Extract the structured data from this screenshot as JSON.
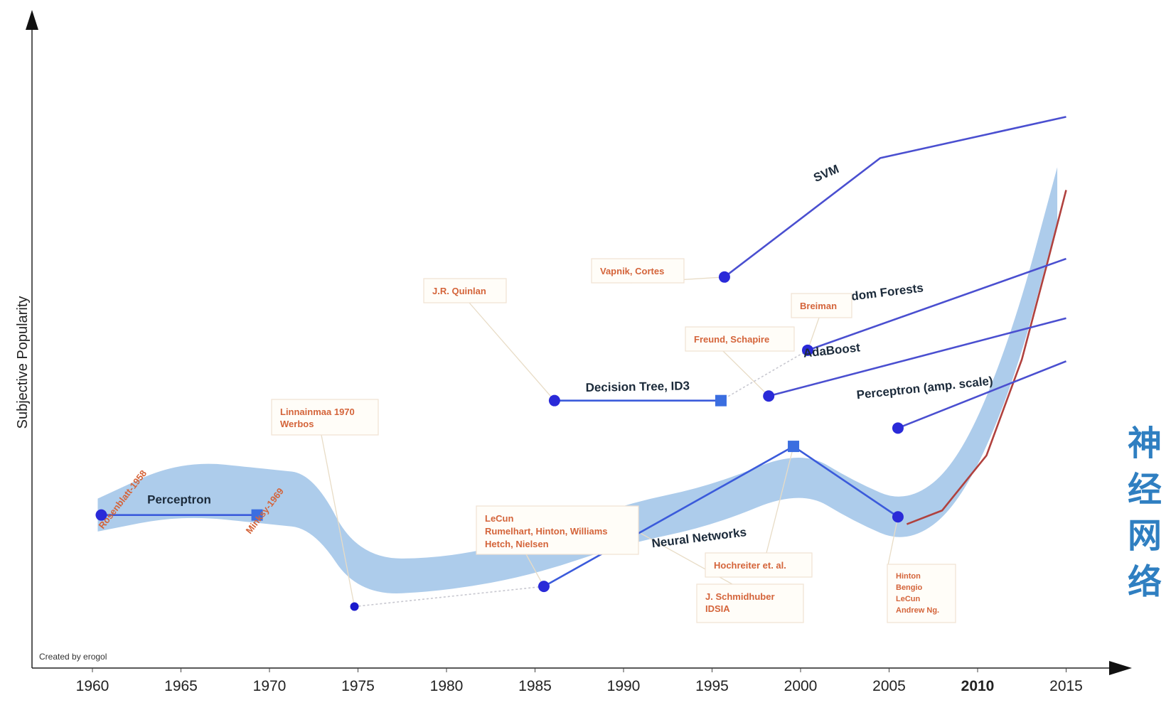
{
  "chart_data": {
    "type": "line",
    "title": "",
    "xlabel": "",
    "ylabel": "Subjective Popularity",
    "x_ticks": [
      "1960",
      "1965",
      "1970",
      "1975",
      "1980",
      "1985",
      "1990",
      "1995",
      "2000",
      "2005",
      "2010",
      "2015"
    ],
    "xlim": [
      1958,
      2018
    ],
    "ylim": [
      0,
      10
    ],
    "grid": false,
    "credit": "Created by erogol",
    "side_text": [
      "神",
      "经",
      "网",
      "络"
    ],
    "highlight_band": {
      "name": "Neural Networks trend",
      "color": "#9fc3e8",
      "points": [
        [
          1960.3,
          1.4
        ],
        [
          1965,
          1.7
        ],
        [
          1970,
          1.6
        ],
        [
          1972.5,
          1.55
        ],
        [
          1975,
          0.72
        ],
        [
          1980,
          0.75
        ],
        [
          1985,
          0.95
        ],
        [
          1990,
          1.3
        ],
        [
          1995,
          1.5
        ],
        [
          2000,
          1.9
        ],
        [
          2003,
          1.55
        ],
        [
          2006,
          1.3
        ],
        [
          2009,
          1.75
        ],
        [
          2012,
          3.1
        ],
        [
          2014.5,
          4.9
        ]
      ]
    },
    "series": [
      {
        "name": "Perceptron",
        "label_pos": "above",
        "color": "#3b5bdb",
        "points": [
          [
            1960.5,
            1.4
          ],
          [
            1969.3,
            1.4
          ]
        ],
        "markers": [
          "circle",
          "square"
        ]
      },
      {
        "name": "",
        "color": "#c8c8d0",
        "dashed": true,
        "points": [
          [
            1974.8,
            0.4
          ],
          [
            1985.5,
            0.62
          ]
        ],
        "markers": [
          "circle",
          "none"
        ]
      },
      {
        "name": "Neural Networks",
        "color": "#3b5bdb",
        "points": [
          [
            1985.5,
            0.62
          ],
          [
            1999.6,
            2.15
          ],
          [
            2005.5,
            1.38
          ]
        ],
        "markers": [
          "circle",
          "square",
          "circle"
        ]
      },
      {
        "name": "",
        "color": "#b0413e",
        "points": [
          [
            2006,
            1.3
          ],
          [
            2008,
            1.45
          ],
          [
            2010.5,
            2.05
          ],
          [
            2012.5,
            3.1
          ],
          [
            2014,
            4.2
          ],
          [
            2015,
            4.95
          ]
        ],
        "markers": [
          "none"
        ]
      },
      {
        "name": "Decision Tree, ID3",
        "color": "#3b5bdb",
        "points": [
          [
            1986.1,
            2.65
          ],
          [
            1995.5,
            2.65
          ]
        ],
        "markers": [
          "circle",
          "square"
        ]
      },
      {
        "name": "",
        "color": "#c8c8d0",
        "dashed": true,
        "points": [
          [
            1995.5,
            2.65
          ],
          [
            2000.4,
            3.2
          ]
        ],
        "markers": [
          "none",
          "none"
        ]
      },
      {
        "name": "SVM",
        "color": "#4a4fd0",
        "points": [
          [
            1995.7,
            4.0
          ],
          [
            2004.5,
            5.3
          ],
          [
            2015,
            5.75
          ]
        ],
        "markers": [
          "circle",
          "none",
          "none"
        ]
      },
      {
        "name": "Random Forests",
        "color": "#4a4fd0",
        "points": [
          [
            2000.4,
            3.2
          ],
          [
            2015,
            4.2
          ]
        ],
        "markers": [
          "circle",
          "none"
        ]
      },
      {
        "name": "AdaBoost",
        "color": "#4a4fd0",
        "points": [
          [
            1998.2,
            2.7
          ],
          [
            2015,
            3.55
          ]
        ],
        "markers": [
          "circle",
          "none"
        ]
      },
      {
        "name": "Perceptron (amp. scale)",
        "color": "#4a4fd0",
        "points": [
          [
            2005.5,
            2.35
          ],
          [
            2015,
            3.08
          ]
        ],
        "markers": [
          "circle",
          "none"
        ]
      }
    ],
    "annotations": [
      {
        "lines": [
          "Rosenblatt-1958"
        ],
        "x": 1960.5,
        "y": 1.4,
        "rotated": true
      },
      {
        "lines": [
          "Minksy-1969"
        ],
        "x": 1969.3,
        "y": 1.4,
        "rotated": true
      },
      {
        "lines": [
          "Linnainmaa 1970",
          "Werbos"
        ],
        "x": 1974.8,
        "y": 0.4
      },
      {
        "lines": [
          "J.R. Quinlan"
        ],
        "x": 1986.1,
        "y": 2.65
      },
      {
        "lines": [
          "Vapnik, Cortes"
        ],
        "x": 1995.7,
        "y": 4.0
      },
      {
        "lines": [
          "Breiman"
        ],
        "x": 2000.4,
        "y": 3.2
      },
      {
        "lines": [
          "Freund, Schapire"
        ],
        "x": 1998.2,
        "y": 2.7
      },
      {
        "lines": [
          "LeCun",
          "Rumelhart, Hinton, Williams",
          "Hetch, Nielsen"
        ],
        "x": 1985.5,
        "y": 0.62
      },
      {
        "lines": [
          "Hochreiter et. al."
        ],
        "x": 1999.6,
        "y": 2.15
      },
      {
        "lines": [
          "J. Schmidhuber",
          "IDSIA"
        ],
        "x": 1990.5,
        "y": 1.25
      },
      {
        "lines": [
          "Hinton",
          "Bengio",
          "LeCun",
          "Andrew Ng."
        ],
        "x": 2005.5,
        "y": 1.38
      }
    ]
  }
}
